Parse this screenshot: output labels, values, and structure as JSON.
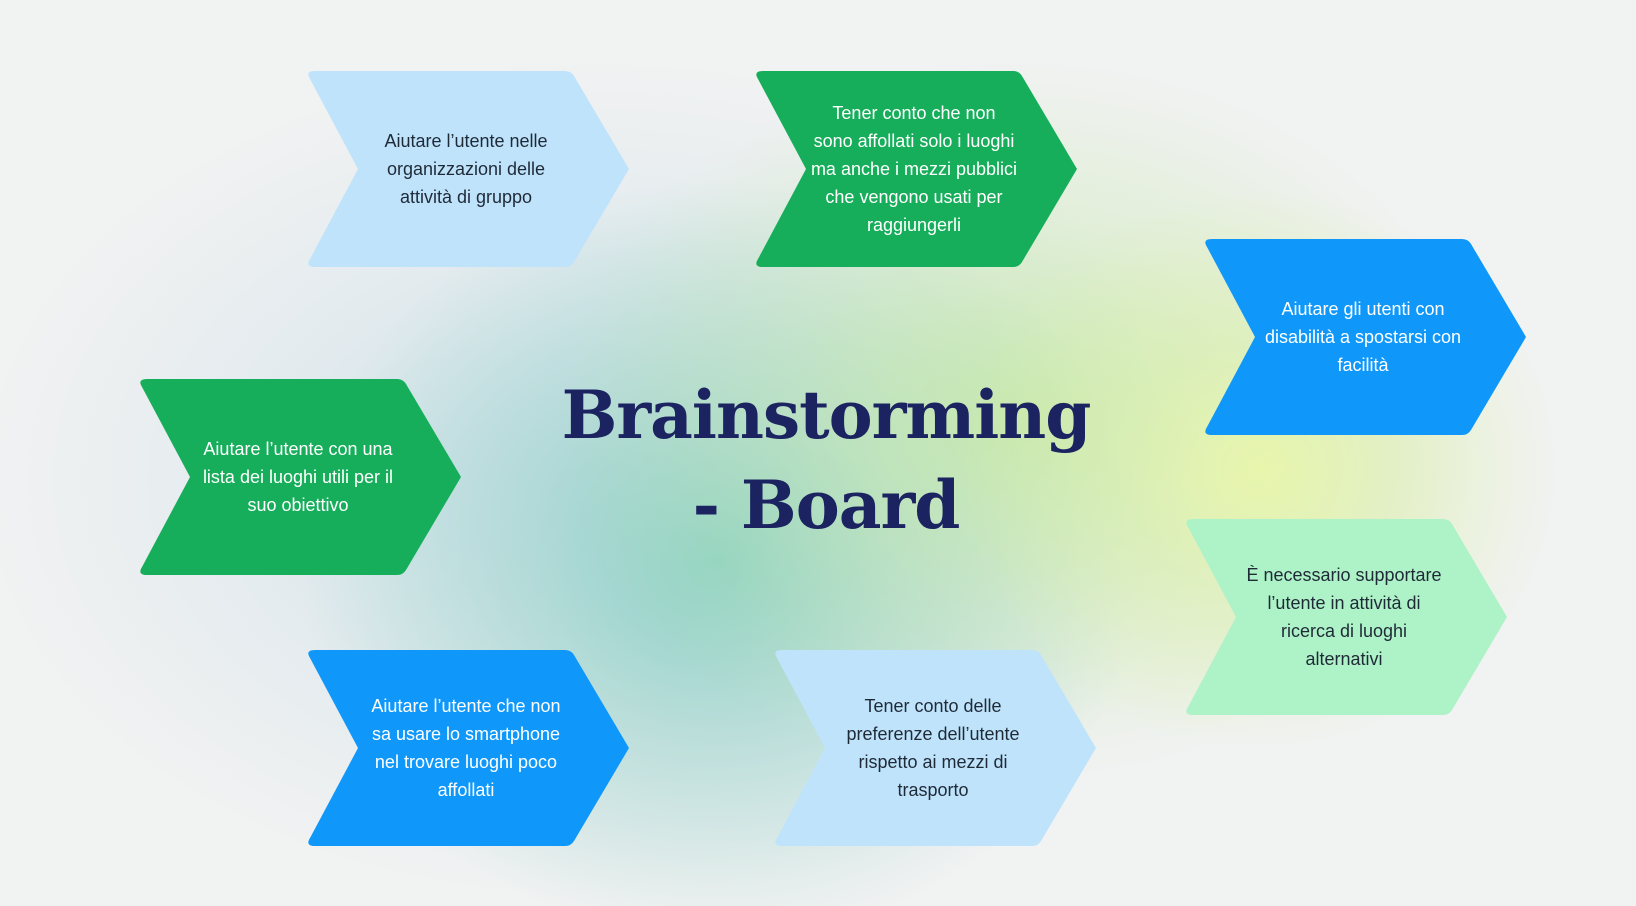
{
  "board": {
    "title_line1": "Brainstorming",
    "title_line2": "- Board"
  },
  "palette": {
    "light_blue": "#bfe3fb",
    "green": "#16ae5a",
    "blue": "#0f98fa",
    "mint": "#aef2c8",
    "dark_text": "#1f2a37",
    "light_text": "#ffffff",
    "title_navy": "#1b2460"
  },
  "cards": [
    {
      "id": "organizzazione-gruppo",
      "text": "Aiutare l’utente nelle\norganizzazioni delle\nattività di gruppo",
      "color": "#bfe3fb",
      "text_color": "#1f2a37"
    },
    {
      "id": "mezzi-pubblici",
      "text": "Tener conto che non\nsono affollati solo i luoghi\nma anche i mezzi pubblici\nche vengono usati per\nraggiungerli",
      "color": "#16ae5a",
      "text_color": "#ffffff"
    },
    {
      "id": "disabilita",
      "text": "Aiutare gli utenti con\ndisabilità a spostarsi con\nfacilità",
      "color": "#0f98fa",
      "text_color": "#ffffff"
    },
    {
      "id": "lista-luoghi",
      "text": "Aiutare l’utente con una\nlista dei luoghi utili per il\nsuo obiettivo",
      "color": "#16ae5a",
      "text_color": "#ffffff"
    },
    {
      "id": "luoghi-alternativi",
      "text": "È necessario supportare\nl’utente in attività di\nricerca di luoghi\nalternativi",
      "color": "#aef2c8",
      "text_color": "#1f2a37"
    },
    {
      "id": "smartphone",
      "text": "Aiutare l’utente che non\nsa usare lo smartphone\nnel trovare luoghi poco\naffollati",
      "color": "#0f98fa",
      "text_color": "#ffffff"
    },
    {
      "id": "preferenze-trasporto",
      "text": "Tener conto delle\npreferenze dell’utente\nrispetto ai mezzi di\ntrasporto",
      "color": "#bfe3fb",
      "text_color": "#1f2a37"
    }
  ]
}
